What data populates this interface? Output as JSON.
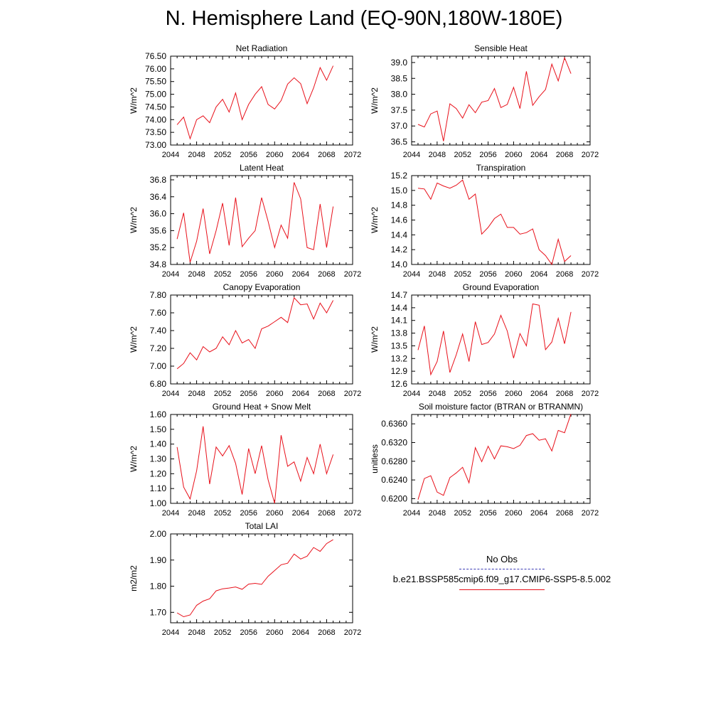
{
  "title": "N. Hemisphere Land (EQ-90N,180W-180E)",
  "legend": {
    "obs_label": "No Obs",
    "obs_color": "#3b3bb5",
    "case_label": "b.e21.BSSP585cmip6.f09_g17.CMIP6-SSP5-8.5.002",
    "case_color": "#e8101a"
  },
  "chart_data": [
    {
      "type": "line",
      "title": "Net Radiation",
      "xlabel": "",
      "ylabel": "W/m^2",
      "xlim": [
        2044,
        2072
      ],
      "ylim": [
        73.0,
        76.5
      ],
      "xticks": [
        "2044",
        "2048",
        "2052",
        "2056",
        "2060",
        "2064",
        "2068",
        "2072"
      ],
      "yticks": [
        "73.00",
        "73.50",
        "74.00",
        "74.50",
        "75.00",
        "75.50",
        "76.00",
        "76.50"
      ],
      "series": [
        {
          "color": "#e8101a",
          "x": [
            2045,
            2046,
            2047,
            2048,
            2049,
            2050,
            2051,
            2052,
            2053,
            2054,
            2055,
            2056,
            2057,
            2058,
            2059,
            2060,
            2061,
            2062,
            2063,
            2064,
            2065,
            2066,
            2067,
            2068,
            2069
          ],
          "y": [
            73.8,
            74.1,
            73.25,
            74.0,
            74.15,
            73.88,
            74.5,
            74.8,
            74.3,
            75.05,
            74.0,
            74.6,
            75.0,
            75.3,
            74.6,
            74.42,
            74.75,
            75.4,
            75.65,
            75.42,
            74.63,
            75.25,
            76.05,
            75.55,
            76.12
          ]
        }
      ]
    },
    {
      "type": "line",
      "title": "Sensible Heat",
      "xlabel": "",
      "ylabel": "W/m^2",
      "xlim": [
        2044,
        2072
      ],
      "ylim": [
        36.4,
        39.2
      ],
      "xticks": [
        "2044",
        "2048",
        "2052",
        "2056",
        "2060",
        "2064",
        "2068",
        "2072"
      ],
      "yticks": [
        "36.5",
        "37.0",
        "37.5",
        "38.0",
        "38.5",
        "39.0"
      ],
      "series": [
        {
          "color": "#e8101a",
          "x": [
            2045,
            2046,
            2047,
            2048,
            2049,
            2050,
            2051,
            2052,
            2053,
            2054,
            2055,
            2056,
            2057,
            2058,
            2059,
            2060,
            2061,
            2062,
            2063,
            2064,
            2065,
            2066,
            2067,
            2068,
            2069
          ],
          "y": [
            37.05,
            36.97,
            37.38,
            37.47,
            36.52,
            37.7,
            37.55,
            37.25,
            37.67,
            37.42,
            37.75,
            37.8,
            38.18,
            37.58,
            37.68,
            38.22,
            37.55,
            38.72,
            37.65,
            37.92,
            38.15,
            38.95,
            38.42,
            39.15,
            38.65
          ]
        }
      ]
    },
    {
      "type": "line",
      "title": "Latent Heat",
      "xlabel": "",
      "ylabel": "W/m^2",
      "xlim": [
        2044,
        2072
      ],
      "ylim": [
        34.8,
        36.9
      ],
      "xticks": [
        "2044",
        "2048",
        "2052",
        "2056",
        "2060",
        "2064",
        "2068",
        "2072"
      ],
      "yticks": [
        "34.8",
        "35.2",
        "35.6",
        "36.0",
        "36.4",
        "36.8"
      ],
      "series": [
        {
          "color": "#e8101a",
          "x": [
            2045,
            2046,
            2047,
            2048,
            2049,
            2050,
            2051,
            2052,
            2053,
            2054,
            2055,
            2056,
            2057,
            2058,
            2059,
            2060,
            2061,
            2062,
            2063,
            2064,
            2065,
            2066,
            2067,
            2068,
            2069
          ],
          "y": [
            35.4,
            36.02,
            34.85,
            35.35,
            36.12,
            35.05,
            35.6,
            36.25,
            35.25,
            36.38,
            35.22,
            35.42,
            35.6,
            36.38,
            35.82,
            35.2,
            35.73,
            35.42,
            36.74,
            36.35,
            35.2,
            35.15,
            36.23,
            35.2,
            36.17
          ]
        }
      ]
    },
    {
      "type": "line",
      "title": "Transpiration",
      "xlabel": "",
      "ylabel": "W/m^2",
      "xlim": [
        2044,
        2072
      ],
      "ylim": [
        14.0,
        15.2
      ],
      "xticks": [
        "2044",
        "2048",
        "2052",
        "2056",
        "2060",
        "2064",
        "2068",
        "2072"
      ],
      "yticks": [
        "14.0",
        "14.2",
        "14.4",
        "14.6",
        "14.8",
        "15.0",
        "15.2"
      ],
      "series": [
        {
          "color": "#e8101a",
          "x": [
            2045,
            2046,
            2047,
            2048,
            2049,
            2050,
            2051,
            2052,
            2053,
            2054,
            2055,
            2056,
            2057,
            2058,
            2059,
            2060,
            2061,
            2062,
            2063,
            2064,
            2065,
            2066,
            2067,
            2068,
            2069
          ],
          "y": [
            15.03,
            15.02,
            14.88,
            15.1,
            15.06,
            15.03,
            15.07,
            15.14,
            14.88,
            14.95,
            14.41,
            14.5,
            14.62,
            14.68,
            14.5,
            14.5,
            14.41,
            14.43,
            14.48,
            14.2,
            14.12,
            14.0,
            14.34,
            14.04,
            14.12
          ]
        }
      ]
    },
    {
      "type": "line",
      "title": "Canopy Evaporation",
      "xlabel": "",
      "ylabel": "W/m^2",
      "xlim": [
        2044,
        2072
      ],
      "ylim": [
        6.8,
        7.8
      ],
      "xticks": [
        "2044",
        "2048",
        "2052",
        "2056",
        "2060",
        "2064",
        "2068",
        "2072"
      ],
      "yticks": [
        "6.80",
        "7.00",
        "7.20",
        "7.40",
        "7.60",
        "7.80"
      ],
      "series": [
        {
          "color": "#e8101a",
          "x": [
            2045,
            2046,
            2047,
            2048,
            2049,
            2050,
            2051,
            2052,
            2053,
            2054,
            2055,
            2056,
            2057,
            2058,
            2059,
            2060,
            2061,
            2062,
            2063,
            2064,
            2065,
            2066,
            2067,
            2068,
            2069
          ],
          "y": [
            6.97,
            7.03,
            7.15,
            7.07,
            7.22,
            7.16,
            7.2,
            7.33,
            7.24,
            7.4,
            7.26,
            7.3,
            7.2,
            7.42,
            7.45,
            7.5,
            7.55,
            7.49,
            7.77,
            7.69,
            7.7,
            7.53,
            7.71,
            7.6,
            7.74
          ]
        }
      ]
    },
    {
      "type": "line",
      "title": "Ground Evaporation",
      "xlabel": "",
      "ylabel": "W/m^2",
      "xlim": [
        2044,
        2072
      ],
      "ylim": [
        12.6,
        14.7
      ],
      "xticks": [
        "2044",
        "2048",
        "2052",
        "2056",
        "2060",
        "2064",
        "2068",
        "2072"
      ],
      "yticks": [
        "12.6",
        "12.9",
        "13.2",
        "13.5",
        "13.8",
        "14.1",
        "14.4",
        "14.7"
      ],
      "series": [
        {
          "color": "#e8101a",
          "x": [
            2045,
            2046,
            2047,
            2048,
            2049,
            2050,
            2051,
            2052,
            2053,
            2054,
            2055,
            2056,
            2057,
            2058,
            2059,
            2060,
            2061,
            2062,
            2063,
            2064,
            2065,
            2066,
            2067,
            2068,
            2069
          ],
          "y": [
            13.4,
            13.97,
            12.82,
            13.13,
            13.85,
            12.87,
            13.29,
            13.78,
            13.13,
            14.07,
            13.53,
            13.58,
            13.78,
            14.22,
            13.85,
            13.21,
            13.79,
            13.5,
            14.49,
            14.46,
            13.41,
            13.59,
            14.15,
            13.55,
            14.3
          ]
        }
      ]
    },
    {
      "type": "line",
      "title": "Ground Heat + Snow Melt",
      "xlabel": "",
      "ylabel": "W/m^2",
      "xlim": [
        2044,
        2072
      ],
      "ylim": [
        1.0,
        1.6
      ],
      "xticks": [
        "2044",
        "2048",
        "2052",
        "2056",
        "2060",
        "2064",
        "2068",
        "2072"
      ],
      "yticks": [
        "1.00",
        "1.10",
        "1.20",
        "1.30",
        "1.40",
        "1.50",
        "1.60"
      ],
      "series": [
        {
          "color": "#e8101a",
          "x": [
            2045,
            2046,
            2047,
            2048,
            2049,
            2050,
            2051,
            2052,
            2053,
            2054,
            2055,
            2056,
            2057,
            2058,
            2059,
            2060,
            2061,
            2062,
            2063,
            2064,
            2065,
            2066,
            2067,
            2068,
            2069
          ],
          "y": [
            1.38,
            1.11,
            1.03,
            1.22,
            1.52,
            1.13,
            1.38,
            1.32,
            1.39,
            1.27,
            1.06,
            1.37,
            1.2,
            1.39,
            1.16,
            1.0,
            1.46,
            1.25,
            1.28,
            1.15,
            1.31,
            1.2,
            1.4,
            1.2,
            1.33
          ]
        }
      ]
    },
    {
      "type": "line",
      "title": "Soil moisture factor (BTRAN or BTRANMN)",
      "xlabel": "",
      "ylabel": "unitless",
      "xlim": [
        2044,
        2072
      ],
      "ylim": [
        0.619,
        0.638
      ],
      "xticks": [
        "2044",
        "2048",
        "2052",
        "2056",
        "2060",
        "2064",
        "2068",
        "2072"
      ],
      "yticks": [
        "0.6200",
        "0.6240",
        "0.6280",
        "0.6320",
        "0.6360"
      ],
      "series": [
        {
          "color": "#e8101a",
          "x": [
            2045,
            2046,
            2047,
            2048,
            2049,
            2050,
            2051,
            2052,
            2053,
            2054,
            2055,
            2056,
            2057,
            2058,
            2059,
            2060,
            2061,
            2062,
            2063,
            2064,
            2065,
            2066,
            2067,
            2068,
            2069
          ],
          "y": [
            0.6198,
            0.6243,
            0.6249,
            0.6214,
            0.6207,
            0.6245,
            0.6255,
            0.6267,
            0.6234,
            0.6309,
            0.6279,
            0.6312,
            0.6285,
            0.6313,
            0.6311,
            0.6307,
            0.6314,
            0.6335,
            0.6339,
            0.6325,
            0.6328,
            0.6302,
            0.6346,
            0.6341,
            0.6381
          ]
        }
      ]
    },
    {
      "type": "line",
      "title": "Total LAI",
      "xlabel": "",
      "ylabel": "m2/m2",
      "xlim": [
        2044,
        2072
      ],
      "ylim": [
        1.66,
        2.0
      ],
      "xticks": [
        "2044",
        "2048",
        "2052",
        "2056",
        "2060",
        "2064",
        "2068",
        "2072"
      ],
      "yticks": [
        "1.70",
        "1.80",
        "1.90",
        "2.00"
      ],
      "series": [
        {
          "color": "#e8101a",
          "x": [
            2045,
            2046,
            2047,
            2048,
            2049,
            2050,
            2051,
            2052,
            2053,
            2054,
            2055,
            2056,
            2057,
            2058,
            2059,
            2060,
            2061,
            2062,
            2063,
            2064,
            2065,
            2066,
            2067,
            2068,
            2069
          ],
          "y": [
            1.698,
            1.683,
            1.69,
            1.727,
            1.743,
            1.752,
            1.782,
            1.79,
            1.793,
            1.797,
            1.788,
            1.808,
            1.811,
            1.807,
            1.838,
            1.86,
            1.882,
            1.888,
            1.923,
            1.904,
            1.915,
            1.948,
            1.933,
            1.963,
            1.978
          ]
        }
      ]
    }
  ]
}
